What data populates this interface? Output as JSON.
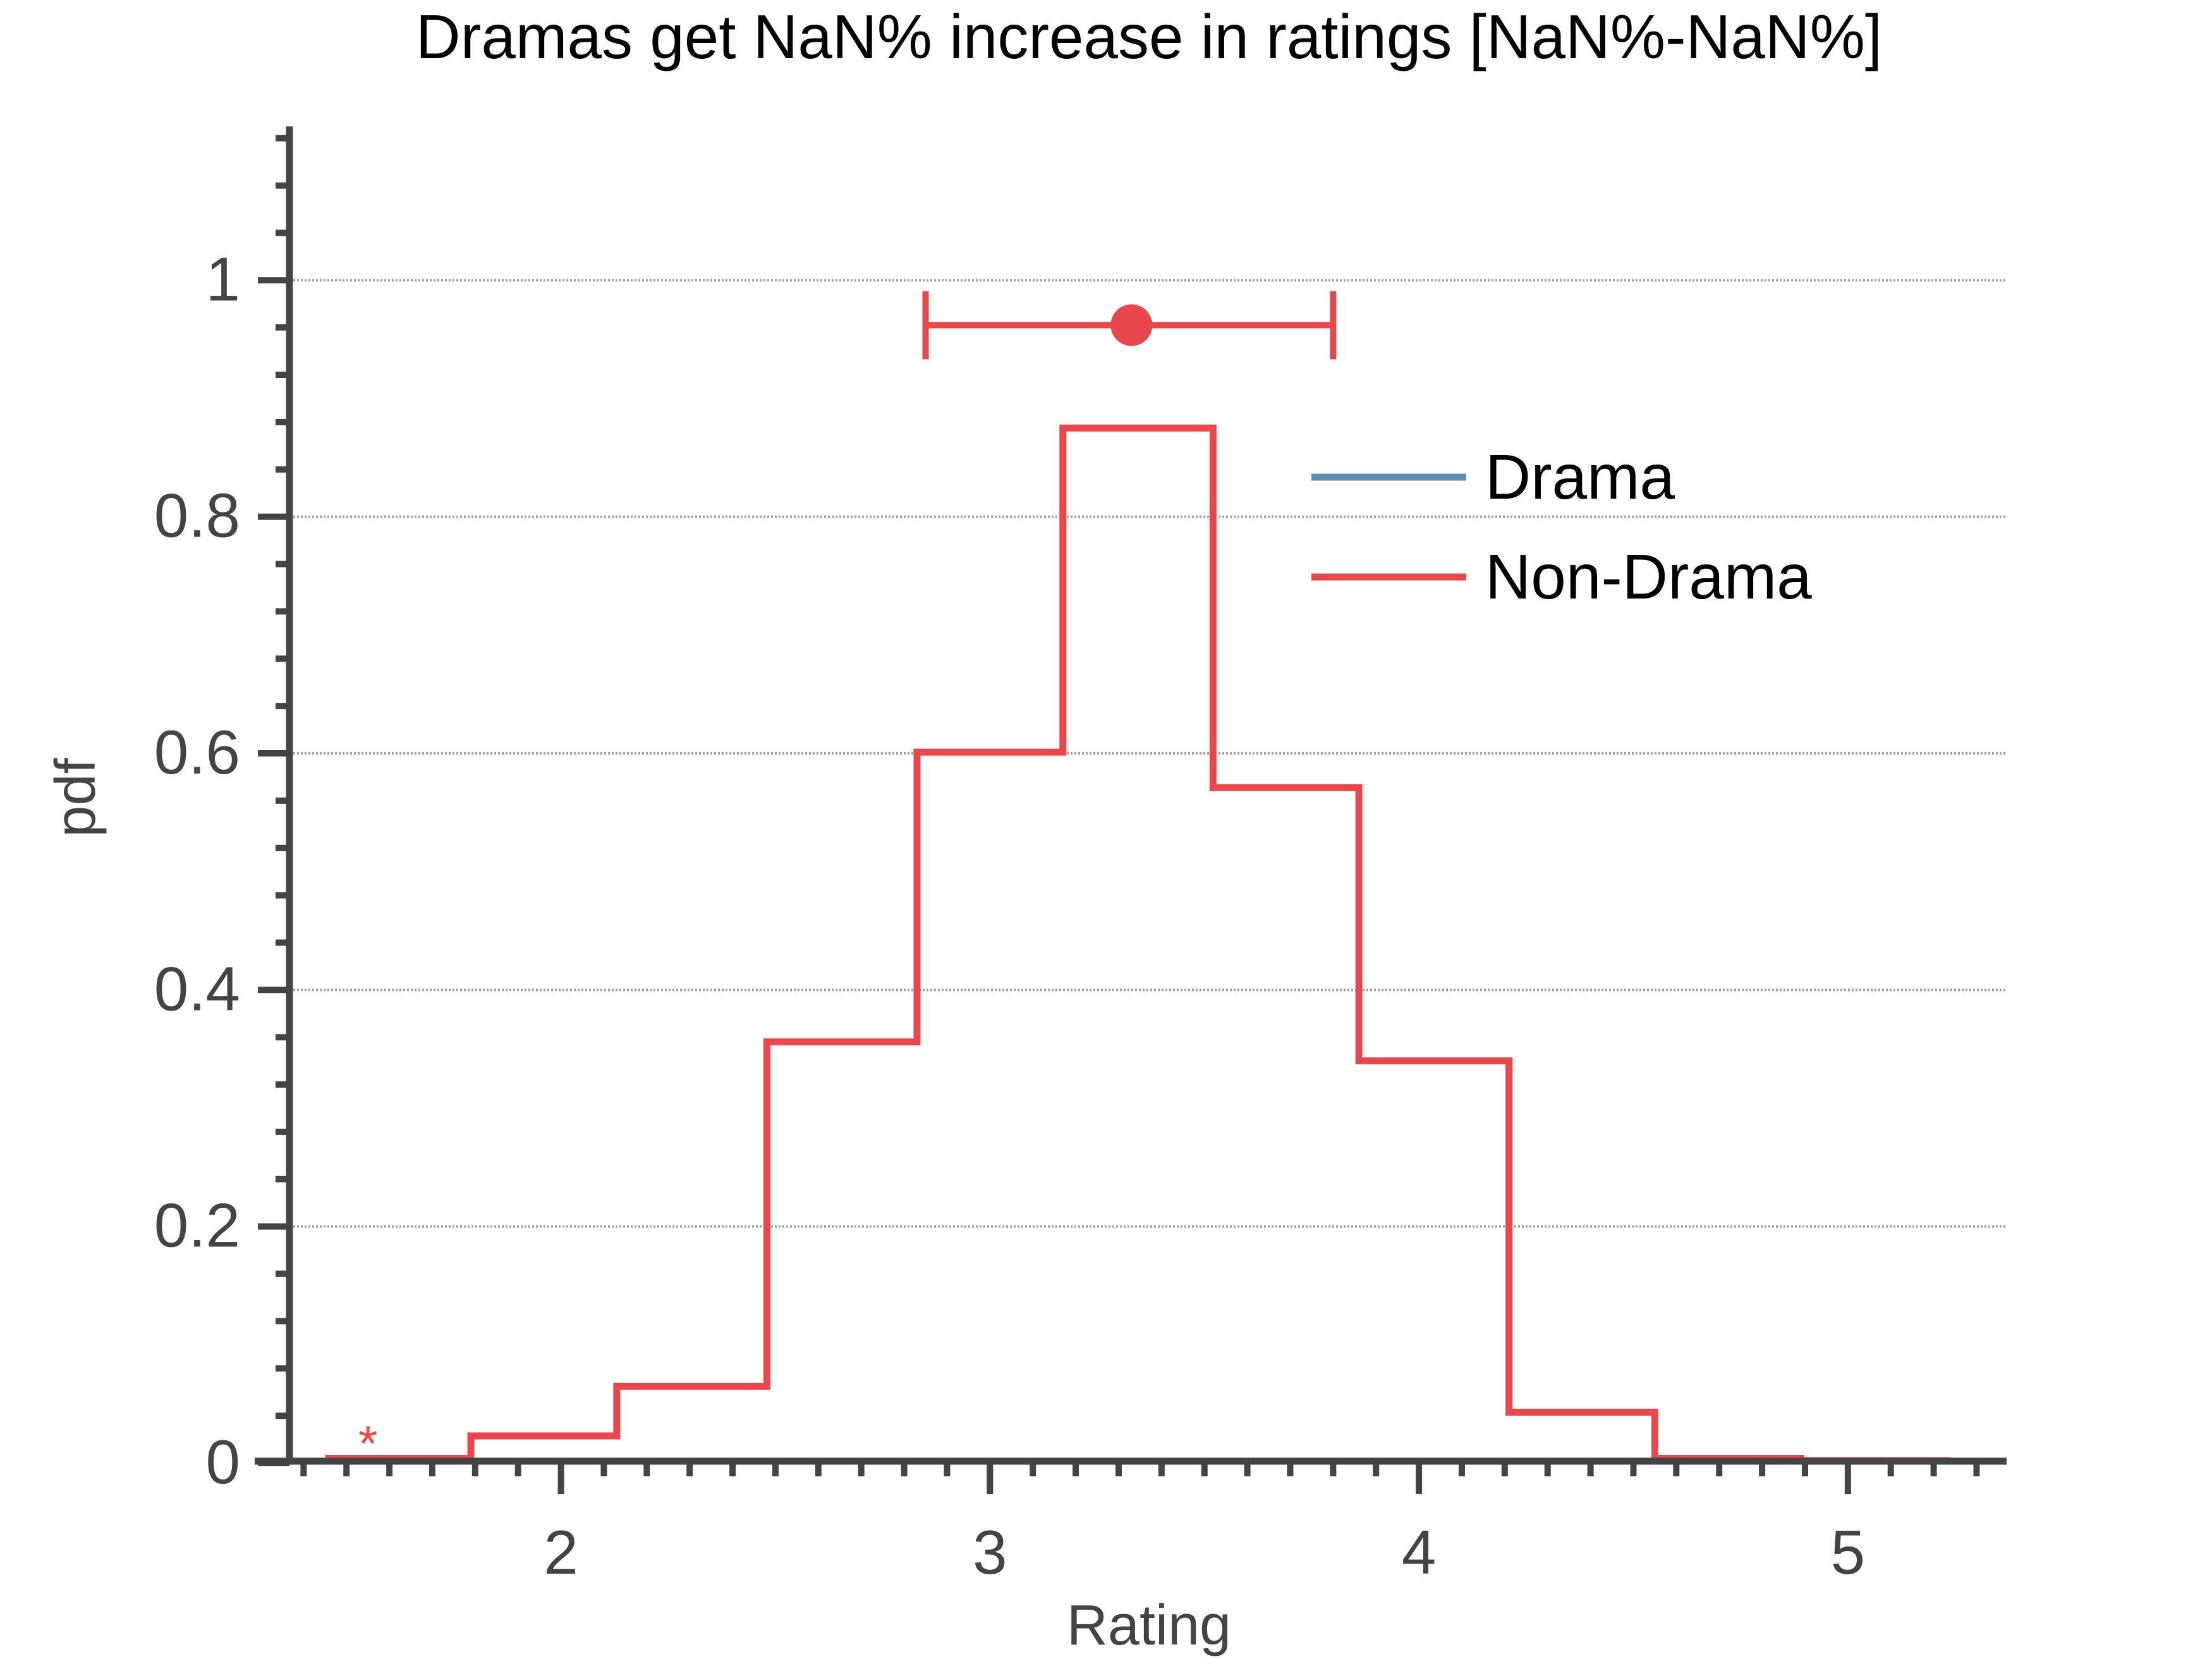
{
  "chart_data": {
    "type": "line",
    "title": "Dramas get NaN% increase in ratings [NaN%-NaN%]",
    "xlabel": "Rating",
    "ylabel": "pdf",
    "xlim": [
      1.37,
      5.37
    ],
    "ylim": [
      0,
      1.13
    ],
    "x_ticks": [
      2,
      3,
      4,
      5
    ],
    "x_tick_labels": [
      "2",
      "3",
      "4",
      "5"
    ],
    "x_minor_step": 0.1,
    "y_ticks": [
      0,
      0.2,
      0.4,
      0.6,
      0.8,
      1
    ],
    "y_tick_labels": [
      "0",
      "0.2",
      "0.4",
      "0.6",
      "0.8",
      "1"
    ],
    "y_minor_step": 0.04,
    "grid": "horizontal-dotted",
    "legend_position": "top-right",
    "series": [
      {
        "name": "Drama",
        "color": "#5b8db8",
        "style": "step",
        "bin_edges": [],
        "values": []
      },
      {
        "name": "Non-Drama",
        "color": "#e8474c",
        "style": "step",
        "bin_edges": [
          1.45,
          1.79,
          2.13,
          2.48,
          2.83,
          3.17,
          3.52,
          3.86,
          4.21,
          4.55,
          4.89,
          5.24
        ],
        "values": [
          0.004,
          0.023,
          0.065,
          0.356,
          0.601,
          0.875,
          0.571,
          0.34,
          0.043,
          0.004,
          0.002
        ]
      }
    ],
    "annotations": [
      {
        "type": "errorbar",
        "series": "Non-Drama",
        "color": "#e8474c",
        "x": 3.33,
        "x_low": 2.85,
        "x_high": 3.8,
        "y": 0.962
      },
      {
        "type": "text",
        "text": "*",
        "color": "#e8474c",
        "x": 1.55,
        "y": 0.012
      }
    ]
  }
}
